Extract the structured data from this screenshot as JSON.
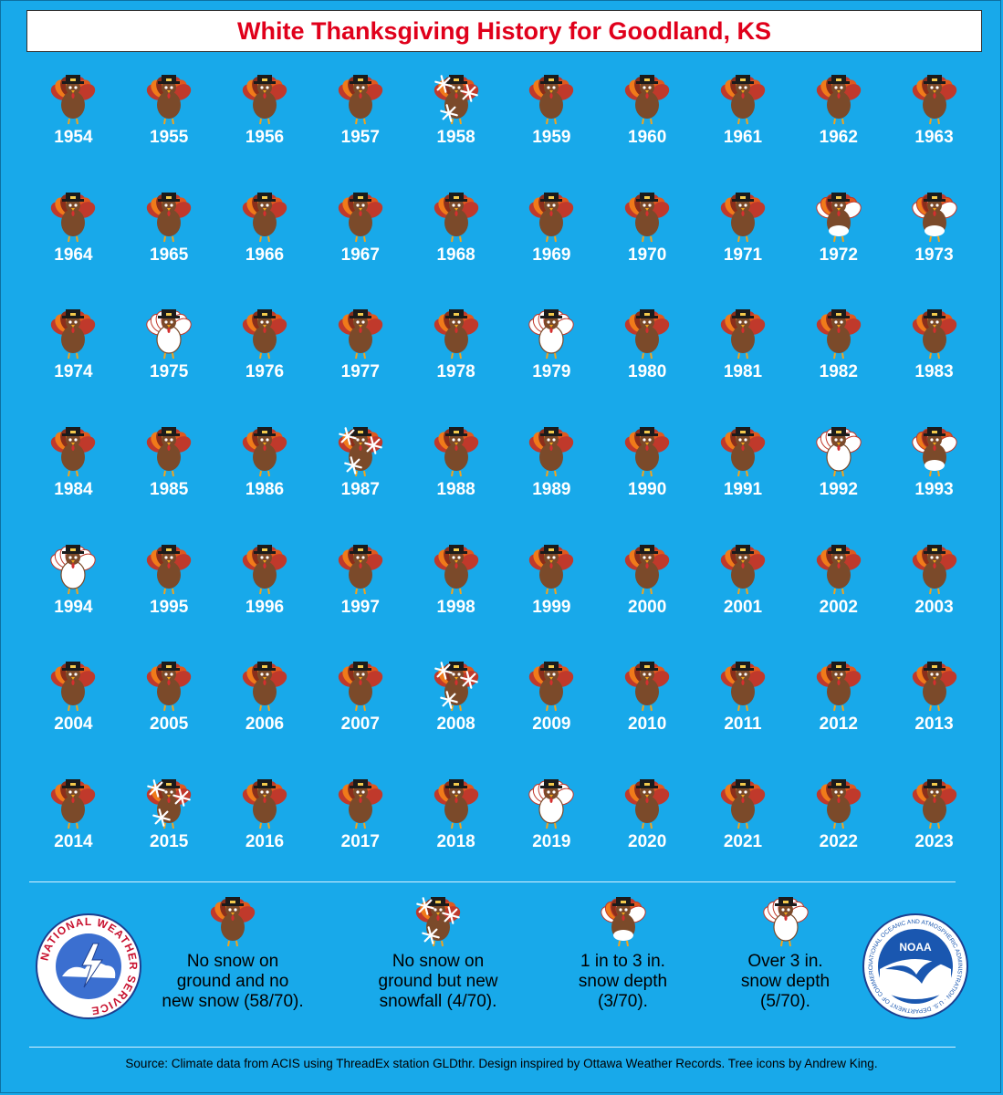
{
  "title": "White Thanksgiving History for Goodland, KS",
  "colors": {
    "background": "#18a9ea",
    "title_text": "#e0001b",
    "turkey_body": "#7b4a2a",
    "feather_red": "#c0392b",
    "feather_orange": "#f07a1a",
    "snow": "#ffffff"
  },
  "years": [
    {
      "year": "1954",
      "category": "none"
    },
    {
      "year": "1955",
      "category": "none"
    },
    {
      "year": "1956",
      "category": "none"
    },
    {
      "year": "1957",
      "category": "none"
    },
    {
      "year": "1958",
      "category": "snowfall"
    },
    {
      "year": "1959",
      "category": "none"
    },
    {
      "year": "1960",
      "category": "none"
    },
    {
      "year": "1961",
      "category": "none"
    },
    {
      "year": "1962",
      "category": "none"
    },
    {
      "year": "1963",
      "category": "none"
    },
    {
      "year": "1964",
      "category": "none"
    },
    {
      "year": "1965",
      "category": "none"
    },
    {
      "year": "1966",
      "category": "none"
    },
    {
      "year": "1967",
      "category": "none"
    },
    {
      "year": "1968",
      "category": "none"
    },
    {
      "year": "1969",
      "category": "none"
    },
    {
      "year": "1970",
      "category": "none"
    },
    {
      "year": "1971",
      "category": "none"
    },
    {
      "year": "1972",
      "category": "depth1to3"
    },
    {
      "year": "1973",
      "category": "depth1to3"
    },
    {
      "year": "1974",
      "category": "none"
    },
    {
      "year": "1975",
      "category": "depthover3"
    },
    {
      "year": "1976",
      "category": "none"
    },
    {
      "year": "1977",
      "category": "none"
    },
    {
      "year": "1978",
      "category": "none"
    },
    {
      "year": "1979",
      "category": "depthover3"
    },
    {
      "year": "1980",
      "category": "none"
    },
    {
      "year": "1981",
      "category": "none"
    },
    {
      "year": "1982",
      "category": "none"
    },
    {
      "year": "1983",
      "category": "none"
    },
    {
      "year": "1984",
      "category": "none"
    },
    {
      "year": "1985",
      "category": "none"
    },
    {
      "year": "1986",
      "category": "none"
    },
    {
      "year": "1987",
      "category": "snowfall"
    },
    {
      "year": "1988",
      "category": "none"
    },
    {
      "year": "1989",
      "category": "none"
    },
    {
      "year": "1990",
      "category": "none"
    },
    {
      "year": "1991",
      "category": "none"
    },
    {
      "year": "1992",
      "category": "depthover3"
    },
    {
      "year": "1993",
      "category": "depth1to3"
    },
    {
      "year": "1994",
      "category": "depthover3"
    },
    {
      "year": "1995",
      "category": "none"
    },
    {
      "year": "1996",
      "category": "none"
    },
    {
      "year": "1997",
      "category": "none"
    },
    {
      "year": "1998",
      "category": "none"
    },
    {
      "year": "1999",
      "category": "none"
    },
    {
      "year": "2000",
      "category": "none"
    },
    {
      "year": "2001",
      "category": "none"
    },
    {
      "year": "2002",
      "category": "none"
    },
    {
      "year": "2003",
      "category": "none"
    },
    {
      "year": "2004",
      "category": "none"
    },
    {
      "year": "2005",
      "category": "none"
    },
    {
      "year": "2006",
      "category": "none"
    },
    {
      "year": "2007",
      "category": "none"
    },
    {
      "year": "2008",
      "category": "snowfall"
    },
    {
      "year": "2009",
      "category": "none"
    },
    {
      "year": "2010",
      "category": "none"
    },
    {
      "year": "2011",
      "category": "none"
    },
    {
      "year": "2012",
      "category": "none"
    },
    {
      "year": "2013",
      "category": "none"
    },
    {
      "year": "2014",
      "category": "none"
    },
    {
      "year": "2015",
      "category": "snowfall"
    },
    {
      "year": "2016",
      "category": "none"
    },
    {
      "year": "2017",
      "category": "none"
    },
    {
      "year": "2018",
      "category": "none"
    },
    {
      "year": "2019",
      "category": "depthover3"
    },
    {
      "year": "2020",
      "category": "none"
    },
    {
      "year": "2021",
      "category": "none"
    },
    {
      "year": "2022",
      "category": "none"
    },
    {
      "year": "2023",
      "category": "none"
    }
  ],
  "legend": [
    {
      "category": "none",
      "text": "No snow on\nground and no\nnew snow (58/70)."
    },
    {
      "category": "snowfall",
      "text": "No snow on\nground but new\nsnowfall (4/70)."
    },
    {
      "category": "depth1to3",
      "text": "1 in to 3 in.\nsnow depth\n(3/70)."
    },
    {
      "category": "depthover3",
      "text": "Over 3 in.\nsnow depth\n(5/70)."
    }
  ],
  "logos": {
    "nws_text": "NATIONAL WEATHER SERVICE",
    "noaa_text": "NOAA",
    "noaa_ring_text": "NATIONAL OCEANIC AND ATMOSPHERIC ADMINISTRATION · U.S. DEPARTMENT OF COMMERCE"
  },
  "footer": "Source: Climate data from ACIS using ThreadEx station GLDthr. Design inspired by Ottawa Weather Records. Tree icons by Andrew King."
}
